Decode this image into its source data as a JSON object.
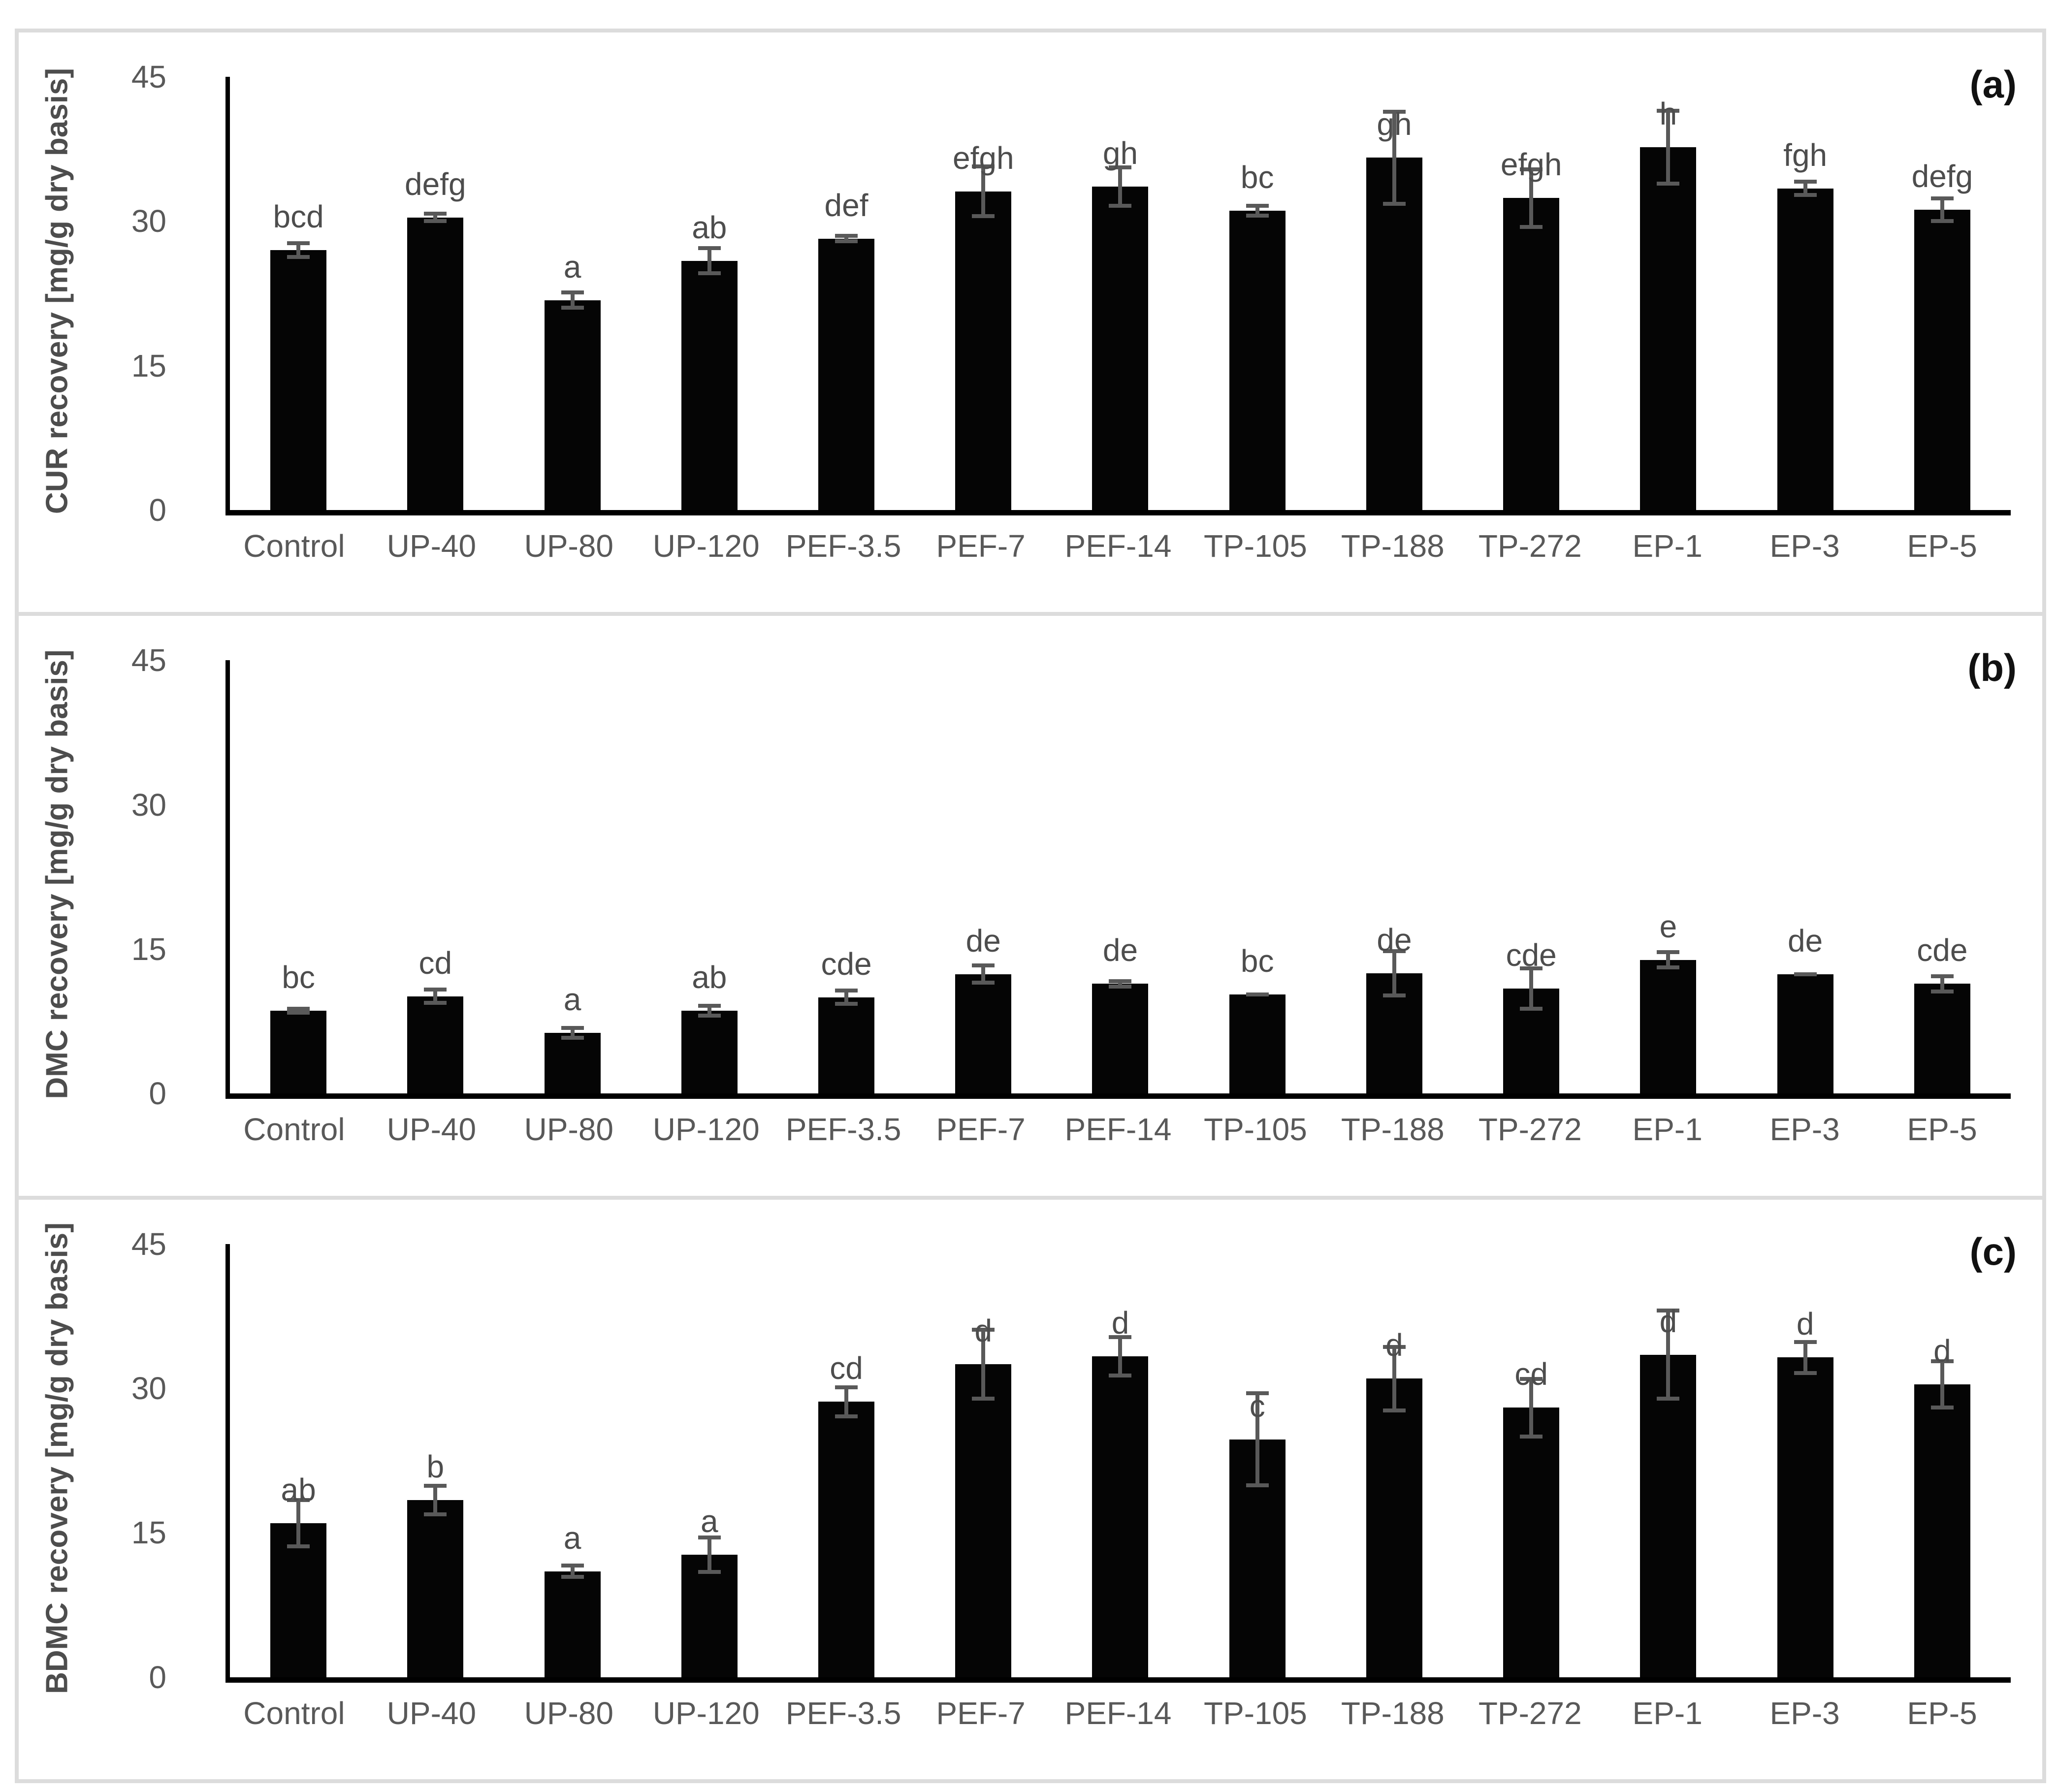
{
  "figure": {
    "border_color": "#dcdcdc",
    "bar_color": "#050505",
    "error_color": "#595959",
    "text_color": "#595959",
    "panel_label_color": "#111111"
  },
  "chart_data": [
    {
      "type": "bar",
      "panel_label": "(a)",
      "ylabel": "CUR recovery [mg/g dry basis]",
      "xlabel": "",
      "title": "",
      "ylim": [
        0,
        45
      ],
      "yticks": [
        0,
        15,
        30,
        45
      ],
      "grid": false,
      "legend": "none",
      "categories": [
        "Control",
        "UP-40",
        "UP-80",
        "UP-120",
        "PEF-3.5",
        "PEF-7",
        "PEF-14",
        "TP-105",
        "TP-188",
        "TP-272",
        "EP-1",
        "EP-3",
        "EP-5"
      ],
      "values": [
        27.0,
        30.4,
        21.8,
        25.9,
        28.2,
        33.1,
        33.6,
        31.1,
        36.6,
        32.4,
        37.7,
        33.4,
        31.2
      ],
      "errors": [
        0.9,
        0.6,
        1.0,
        1.5,
        0.5,
        2.8,
        2.2,
        0.7,
        5.0,
        3.2,
        4.0,
        0.9,
        1.4
      ],
      "significance_letters": [
        "bcd",
        "defg",
        "a",
        "ab",
        "def",
        "efgh",
        "gh",
        "bc",
        "gh",
        "efgh",
        "h",
        "fgh",
        "defg"
      ]
    },
    {
      "type": "bar",
      "panel_label": "(b)",
      "ylabel": "DMC recovery [mg/g dry basis]",
      "xlabel": "",
      "title": "",
      "ylim": [
        0,
        45
      ],
      "yticks": [
        0,
        15,
        30,
        45
      ],
      "grid": false,
      "legend": "none",
      "categories": [
        "Control",
        "UP-40",
        "UP-80",
        "UP-120",
        "PEF-3.5",
        "PEF-7",
        "PEF-14",
        "TP-105",
        "TP-188",
        "TP-272",
        "EP-1",
        "EP-3",
        "EP-5"
      ],
      "values": [
        8.6,
        10.1,
        6.3,
        8.6,
        10.0,
        12.4,
        11.4,
        10.3,
        12.5,
        10.9,
        13.9,
        12.4,
        11.4
      ],
      "errors": [
        0.4,
        0.9,
        0.7,
        0.7,
        0.9,
        1.1,
        0.5,
        0.2,
        2.5,
        2.3,
        1.0,
        0.2,
        1.0
      ],
      "significance_letters": [
        "bc",
        "cd",
        "a",
        "ab",
        "cde",
        "de",
        "de",
        "bc",
        "de",
        "cde",
        "e",
        "de",
        "cde"
      ]
    },
    {
      "type": "bar",
      "panel_label": "(c)",
      "ylabel": "BDMC recovery [mg/g dry basis]",
      "xlabel": "",
      "title": "",
      "ylim": [
        0,
        45
      ],
      "yticks": [
        0,
        15,
        30,
        45
      ],
      "grid": false,
      "legend": "none",
      "categories": [
        "Control",
        "UP-40",
        "UP-80",
        "UP-120",
        "PEF-3.5",
        "PEF-7",
        "PEF-14",
        "TP-105",
        "TP-188",
        "TP-272",
        "EP-1",
        "EP-3",
        "EP-5"
      ],
      "values": [
        16.0,
        18.4,
        11.0,
        12.7,
        28.6,
        32.5,
        33.3,
        24.7,
        31.0,
        28.0,
        33.5,
        33.2,
        30.4
      ],
      "errors": [
        2.6,
        1.7,
        0.8,
        2.0,
        1.7,
        3.8,
        2.2,
        5.0,
        3.5,
        3.2,
        4.8,
        1.8,
        2.6
      ],
      "significance_letters": [
        "ab",
        "b",
        "a",
        "a",
        "cd",
        "d",
        "d",
        "c",
        "d",
        "cd",
        "d",
        "d",
        "d"
      ]
    }
  ]
}
